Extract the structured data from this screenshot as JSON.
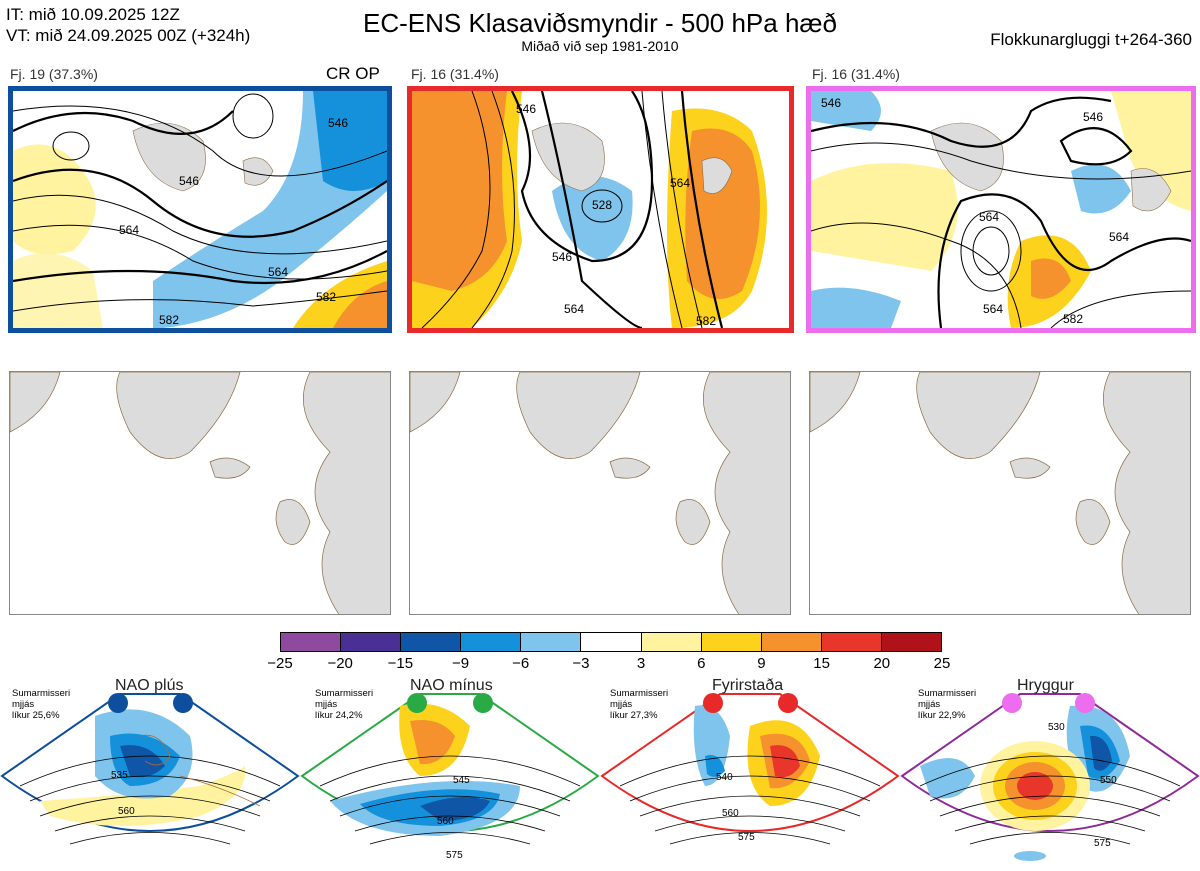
{
  "header": {
    "it": "IT: mið 10.09.2025 12Z",
    "vt": "VT: mið 24.09.2025 00Z  (+324h)",
    "title": "EC-ENS Klasaviðsmyndir - 500 hPa hæð",
    "subtitle": "Miðað við sep 1981-2010",
    "window": "Flokkunargluggi t+264-360"
  },
  "panels": [
    {
      "label": "Fj. 19 (37.3%)",
      "tag": "CR OP",
      "frame_color": "#0d4f9c",
      "contour_labels": [
        "546",
        "546",
        "564",
        "564",
        "582",
        "582"
      ]
    },
    {
      "label": "Fj. 16 (31.4%)",
      "tag": "",
      "frame_color": "#e8292a",
      "contour_labels": [
        "546",
        "528",
        "546",
        "564",
        "564",
        "582"
      ]
    },
    {
      "label": "Fj. 16 (31.4%)",
      "tag": "",
      "frame_color": "#ec6ded",
      "contour_labels": [
        "546",
        "546",
        "564",
        "564",
        "564",
        "582"
      ]
    }
  ],
  "colorbar": {
    "ticks": [
      "−25",
      "−20",
      "−15",
      "−9",
      "−6",
      "−3",
      "3",
      "6",
      "9",
      "15",
      "20",
      "25"
    ],
    "colors": [
      "#8e4a9f",
      "#4a2f94",
      "#0f57a6",
      "#1591dc",
      "#7fc4ec",
      "#ffffff",
      "#fff3a0",
      "#fdd21c",
      "#f5922e",
      "#e9362b",
      "#b0121a"
    ]
  },
  "regimes": [
    {
      "title": "NAO plús",
      "note": [
        "Sumarmisseri",
        "mjjás",
        "líkur 25,6%"
      ],
      "color": "#0d4f9c",
      "labels": [
        "535",
        "560"
      ]
    },
    {
      "title": "NAO mínus",
      "note": [
        "Sumarmisseri",
        "mjjás",
        "líkur 24,2%"
      ],
      "color": "#2aaa45",
      "labels": [
        "545",
        "560",
        "575"
      ]
    },
    {
      "title": "Fyrirstaða",
      "note": [
        "Sumarmisseri",
        "mjjás",
        "líkur 27,3%"
      ],
      "color": "#e8292a",
      "labels": [
        "540",
        "560",
        "575"
      ]
    },
    {
      "title": "Hryggur",
      "note": [
        "Sumarmisseri",
        "mjjás",
        "líkur 22,9%"
      ],
      "color": "#8e2a9a",
      "labels": [
        "530",
        "550",
        "575"
      ]
    }
  ]
}
